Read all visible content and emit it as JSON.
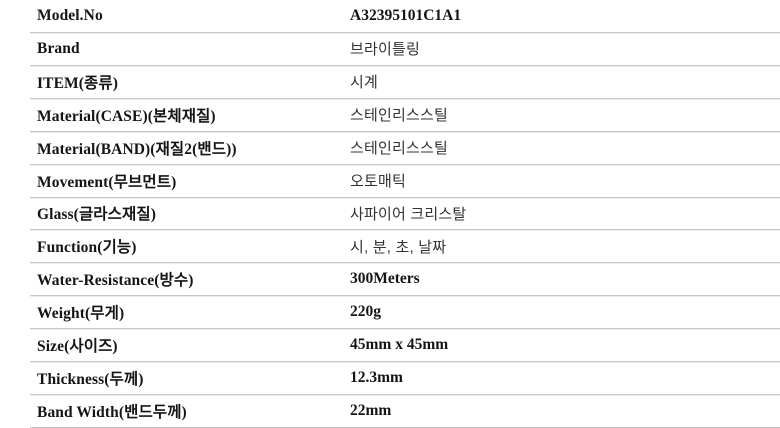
{
  "page": {
    "background_color": "#ffffff",
    "divider_color": "#c6c6c6",
    "label_text_color": "#151515",
    "value_text_color": "#333333"
  },
  "table": {
    "rows": [
      {
        "label": "Model.No",
        "value": "A32395101C1A1"
      },
      {
        "label": "Brand",
        "value": "브라이틀링"
      },
      {
        "label": "ITEM(종류)",
        "value": "시계"
      },
      {
        "label": "Material(CASE)(본체재질)",
        "value": "스테인리스스틸"
      },
      {
        "label": "Material(BAND)(재질2(밴드))",
        "value": "스테인리스스틸"
      },
      {
        "label": "Movement(무브먼트)",
        "value": "오토매틱"
      },
      {
        "label": "Glass(글라스재질)",
        "value": "사파이어 크리스탈"
      },
      {
        "label": "Function(기능)",
        "value": "시, 분, 초, 날짜"
      },
      {
        "label": "Water-Resistance(방수)",
        "value": "300Meters"
      },
      {
        "label": "Weight(무게)",
        "value": "220g"
      },
      {
        "label": "Size(사이즈)",
        "value": "45mm x 45mm"
      },
      {
        "label": "Thickness(두께)",
        "value": "12.3mm"
      },
      {
        "label": "Band Width(밴드두께)",
        "value": "22mm"
      }
    ]
  }
}
